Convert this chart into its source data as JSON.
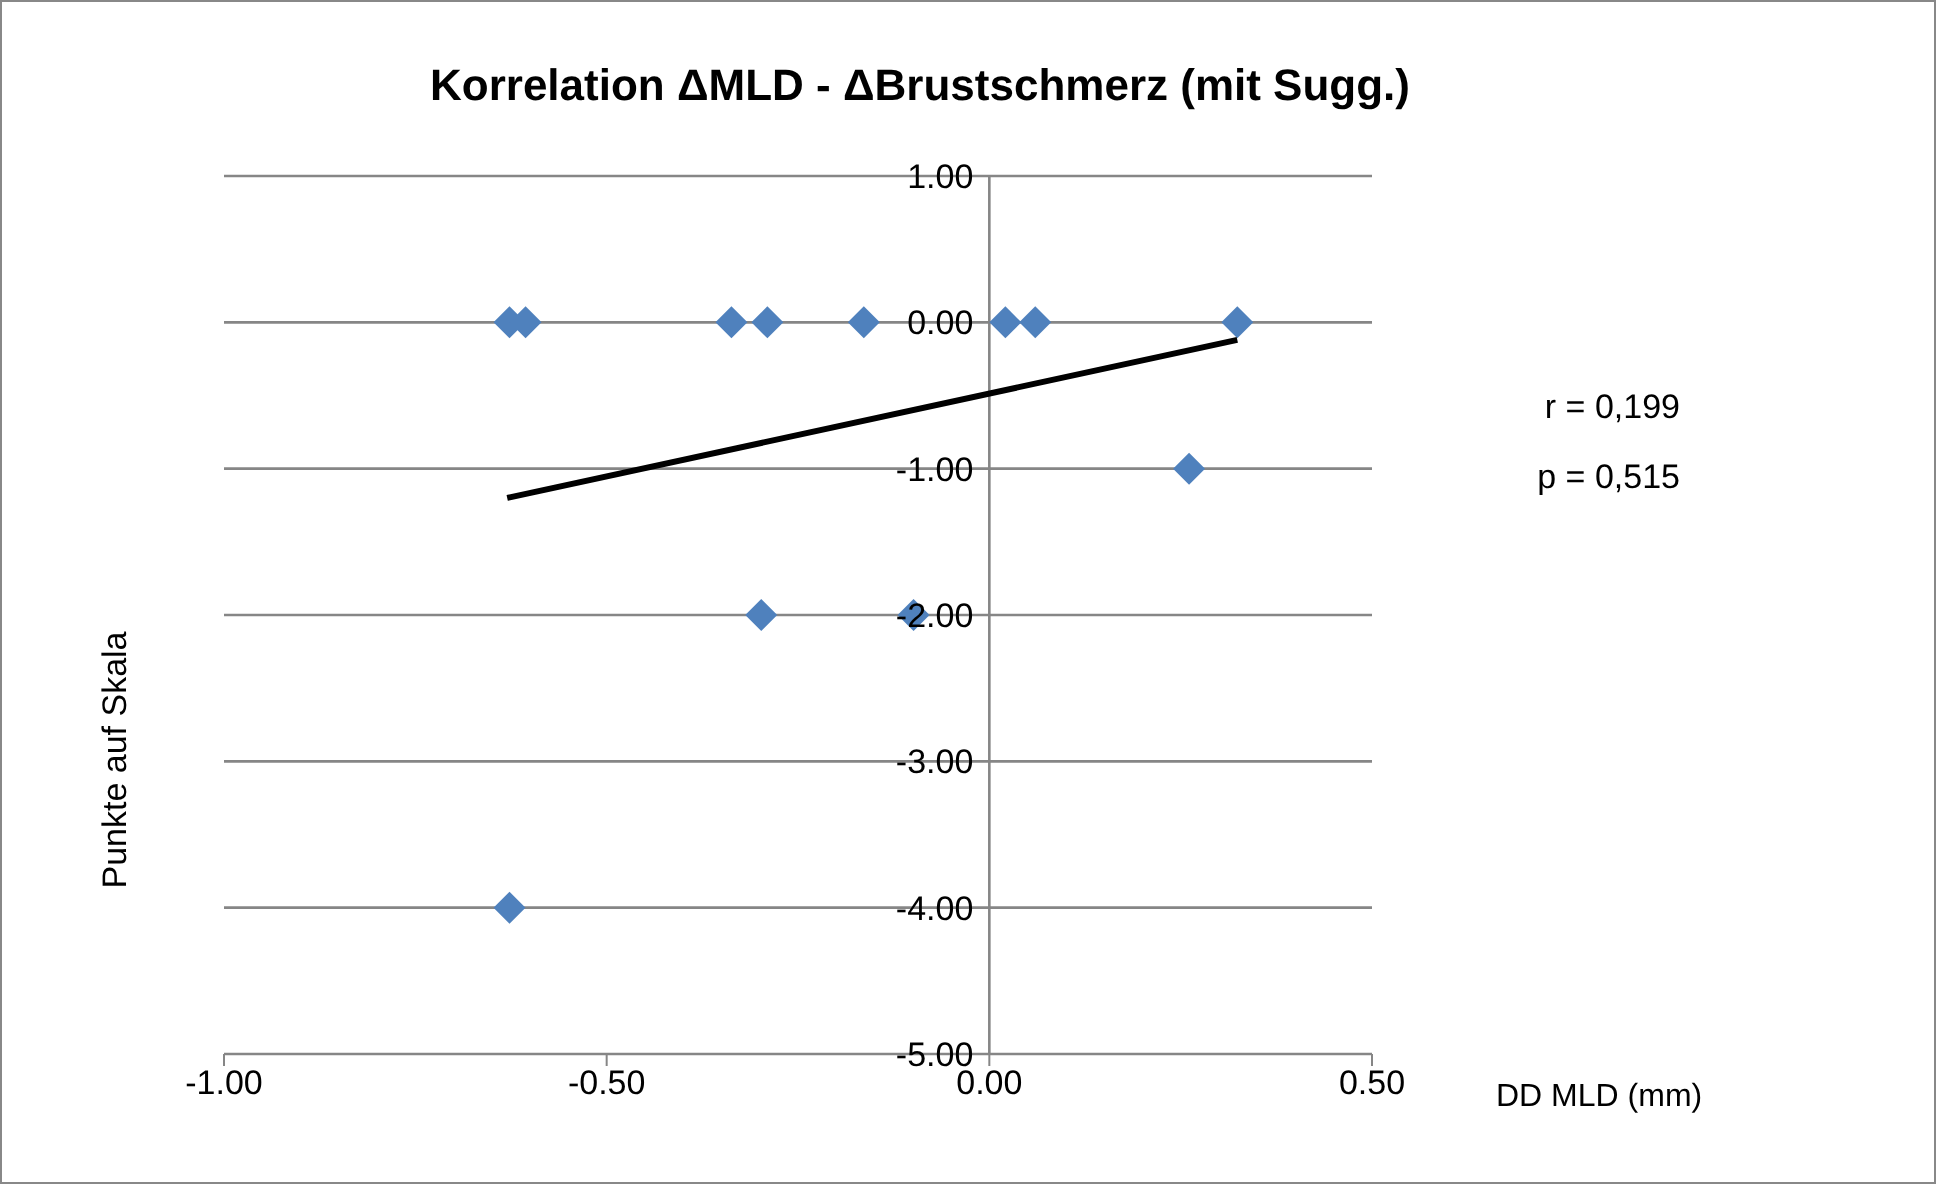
{
  "chart_data": {
    "type": "scatter",
    "title": "Korrelation ΔMLD - ΔBrustschmerz (mit Sugg.)",
    "xlabel": "DD MLD  (mm)",
    "ylabel": "Punkte auf Skala",
    "series": [
      {
        "type": "scatter",
        "color": "#4f81bd",
        "marker": "diamond",
        "x": [
          -0.627,
          -0.606,
          -0.337,
          -0.29,
          -0.164,
          0.021,
          0.06,
          0.324,
          0.261,
          -0.298,
          -0.099,
          -0.627
        ],
        "values": [
          0,
          0,
          0,
          0,
          0,
          0,
          0,
          0,
          -1,
          -2,
          -2,
          -4
        ]
      },
      {
        "type": "line",
        "color": "#000000",
        "marker": "none",
        "x": [
          -0.63,
          0.324
        ],
        "values": [
          -1.2,
          -0.12
        ]
      }
    ],
    "xlim": [
      -1,
      0.5
    ],
    "xticks": [
      {
        "value": -1,
        "label": "-1.00"
      },
      {
        "value": -0.5,
        "label": "-0.50"
      },
      {
        "value": 0,
        "label": "0.00"
      },
      {
        "value": 0.5,
        "label": "0.50"
      }
    ],
    "ylim": [
      -5,
      1
    ],
    "yticks": [
      {
        "value": -5,
        "label": "-5.00"
      },
      {
        "value": -4,
        "label": "-4.00"
      },
      {
        "value": -3,
        "label": "-3.00"
      },
      {
        "value": -2,
        "label": "-2.00"
      },
      {
        "value": -1,
        "label": "-1.00"
      },
      {
        "value": 0,
        "label": "0.00"
      },
      {
        "value": 1,
        "label": "1.00"
      }
    ],
    "grid": "y",
    "legend": false,
    "annotations": [
      "r = 0,199",
      "p = 0,515"
    ]
  }
}
